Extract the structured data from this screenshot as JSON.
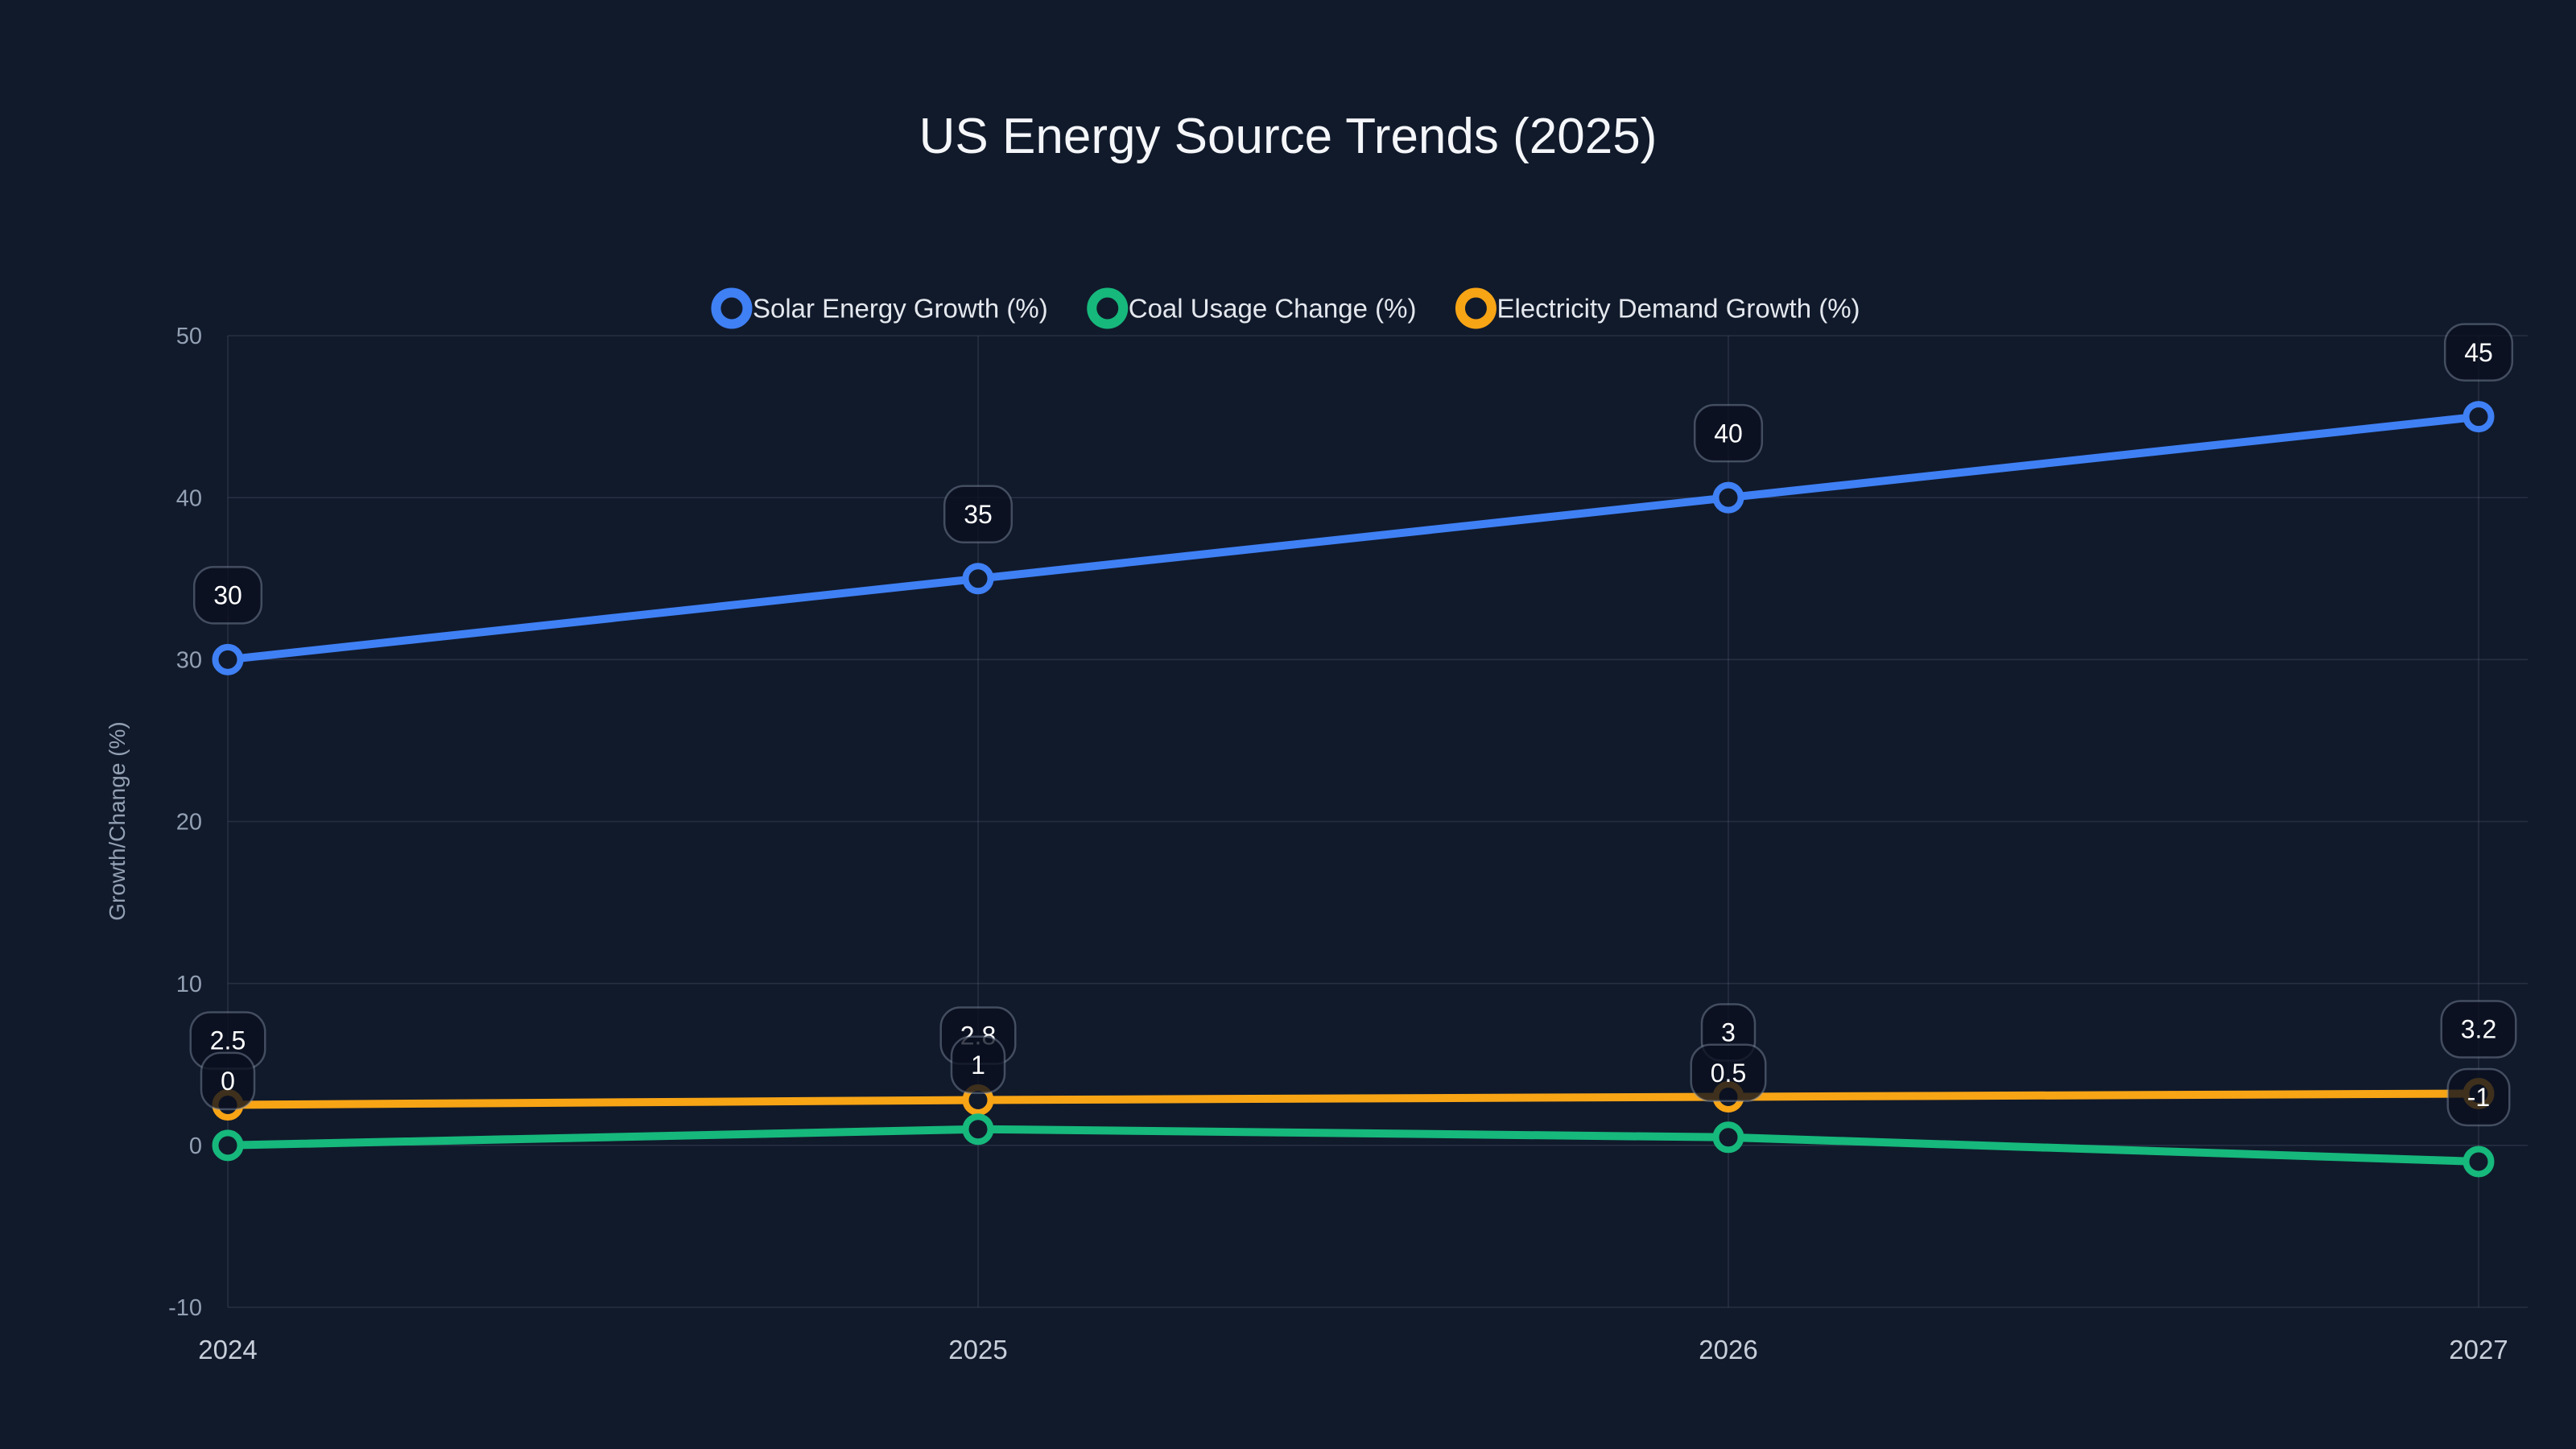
{
  "chart_data": {
    "type": "line",
    "title": "US Energy Source Trends (2025)",
    "xlabel": "",
    "ylabel": "Growth/Change (%)",
    "categories": [
      "2024",
      "2025",
      "2026",
      "2027"
    ],
    "series": [
      {
        "name": "Solar Energy Growth (%)",
        "color": "#3f80f5",
        "values": [
          30,
          35,
          40,
          45
        ],
        "point_labels": [
          "30",
          "35",
          "40",
          "45"
        ]
      },
      {
        "name": "Coal Usage Change (%)",
        "color": "#16b87c",
        "values": [
          0,
          1,
          0.5,
          -1
        ],
        "point_labels": [
          "0",
          "1",
          "0.5",
          "-1"
        ]
      },
      {
        "name": "Electricity Demand Growth (%)",
        "color": "#f7a415",
        "values": [
          2.5,
          2.8,
          3,
          3.2
        ],
        "point_labels": [
          "2.5",
          "2.8",
          "3",
          "3.2"
        ]
      }
    ],
    "ylim": [
      -10,
      50
    ],
    "y_ticks": [
      -10,
      0,
      10,
      20,
      30,
      40,
      50
    ],
    "grid": true,
    "legend_position": "top",
    "point_labels_visible": true
  },
  "style": {
    "background": "#111a2b",
    "grid_color": "rgba(148,163,184,0.16)",
    "y_tick_color": "#93a0b4",
    "x_tick_color": "#c8cfda",
    "axis_title_color": "#93a0b4",
    "title_color": "#f4f6f9",
    "legend_text_color": "#e4e8ee",
    "label_box_fill": "rgba(10,16,31,0.78)",
    "label_box_border": "rgba(148,163,184,0.4)",
    "label_text_color": "#ffffff"
  }
}
